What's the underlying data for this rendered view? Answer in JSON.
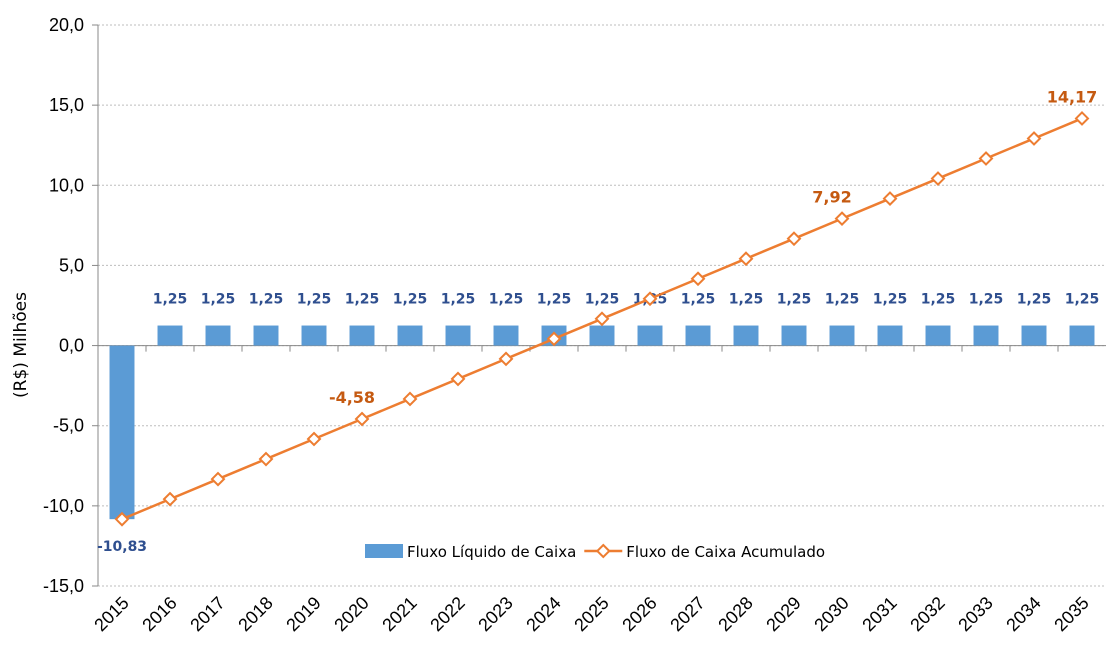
{
  "chart_data": {
    "type": "bar_line",
    "y_label": "(R$) Milhões",
    "categories": [
      "2015",
      "2016",
      "2017",
      "2018",
      "2019",
      "2020",
      "2021",
      "2022",
      "2023",
      "2024",
      "2025",
      "2026",
      "2027",
      "2028",
      "2029",
      "2030",
      "2031",
      "2032",
      "2033",
      "2034",
      "2035"
    ],
    "series": [
      {
        "name": "Fluxo Líquido de Caixa",
        "type": "bar",
        "color": "#5b9bd5",
        "values": [
          -10.83,
          1.25,
          1.25,
          1.25,
          1.25,
          1.25,
          1.25,
          1.25,
          1.25,
          1.25,
          1.25,
          1.25,
          1.25,
          1.25,
          1.25,
          1.25,
          1.25,
          1.25,
          1.25,
          1.25,
          1.25
        ],
        "value_labels": [
          "-10,83",
          "1,25",
          "1,25",
          "1,25",
          "1,25",
          "1,25",
          "1,25",
          "1,25",
          "1,25",
          "1,25",
          "1,25",
          "1,25",
          "1,25",
          "1,25",
          "1,25",
          "1,25",
          "1,25",
          "1,25",
          "1,25",
          "1,25",
          "1,25"
        ]
      },
      {
        "name": "Fluxo de Caixa Acumulado",
        "type": "line",
        "color": "#ed7d31",
        "values": [
          -10.83,
          -9.58,
          -8.33,
          -7.08,
          -5.83,
          -4.58,
          -3.33,
          -2.08,
          -0.83,
          0.42,
          1.67,
          2.92,
          4.17,
          5.42,
          6.67,
          7.92,
          9.17,
          10.42,
          11.67,
          12.92,
          14.17
        ],
        "value_labels": [
          null,
          null,
          null,
          null,
          null,
          "-4,58",
          null,
          null,
          null,
          null,
          null,
          null,
          null,
          null,
          null,
          "7,92",
          null,
          null,
          null,
          null,
          "14,17"
        ]
      }
    ],
    "ylim": [
      -15,
      20
    ],
    "yticks": [
      {
        "value": -15,
        "label": "-15,0"
      },
      {
        "value": -10,
        "label": "-10,0"
      },
      {
        "value": -5,
        "label": "-5,0"
      },
      {
        "value": 0,
        "label": "0,0"
      },
      {
        "value": 5,
        "label": "5,0"
      },
      {
        "value": 10,
        "label": "10,0"
      },
      {
        "value": 15,
        "label": "15,0"
      },
      {
        "value": 20,
        "label": "20,0"
      }
    ],
    "grid": true,
    "legend": "bottom"
  }
}
